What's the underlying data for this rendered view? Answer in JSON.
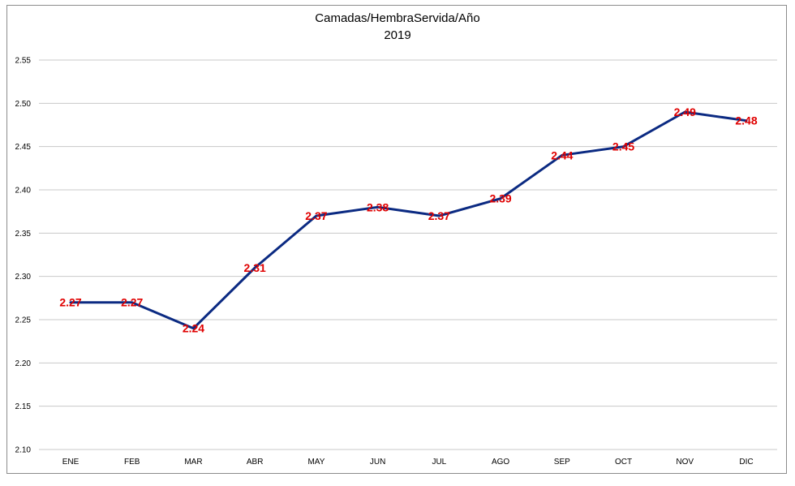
{
  "chart_data": {
    "type": "line",
    "title": "Camadas/HembraServida/Año",
    "subtitle": "2019",
    "categories": [
      "ENE",
      "FEB",
      "MAR",
      "ABR",
      "MAY",
      "JUN",
      "JUL",
      "AGO",
      "SEP",
      "OCT",
      "NOV",
      "DIC"
    ],
    "series": [
      {
        "values": [
          2.27,
          2.27,
          2.24,
          2.31,
          2.37,
          2.38,
          2.37,
          2.39,
          2.44,
          2.45,
          2.49,
          2.48
        ],
        "labels": [
          "2.27",
          "2.27",
          "2.24",
          "2.31",
          "2.37",
          "2.38",
          "2.37",
          "2.39",
          "2.44",
          "2.45",
          "2.49",
          "2.48"
        ]
      }
    ],
    "yticks": [
      "2.10",
      "2.15",
      "2.20",
      "2.25",
      "2.30",
      "2.35",
      "2.40",
      "2.45",
      "2.50",
      "2.55"
    ],
    "ylim": [
      2.1,
      2.55
    ],
    "grid": true,
    "legend": "none",
    "line_color": "#0b2a82",
    "label_color": "#e00000",
    "grid_color": "#c8c8c8"
  }
}
